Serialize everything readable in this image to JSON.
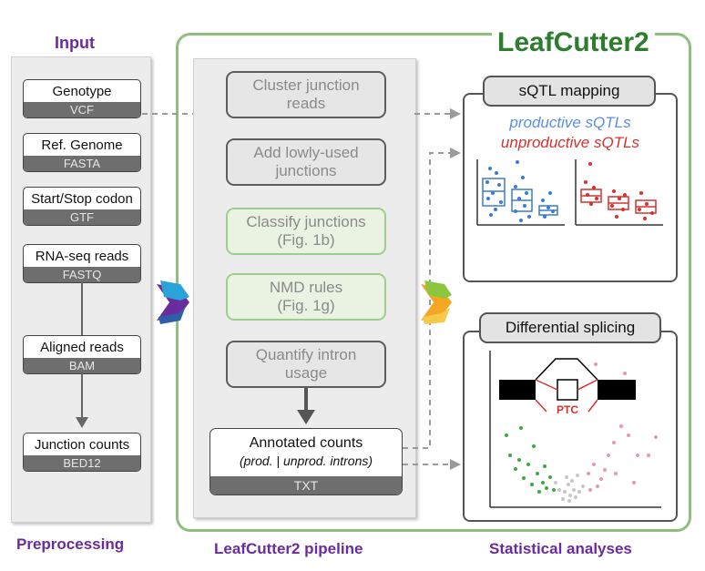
{
  "input": {
    "title": "Input",
    "items": [
      {
        "label": "Genotype",
        "format": "VCF"
      },
      {
        "label": "Ref. Genome",
        "format": "FASTA"
      },
      {
        "label": "Start/Stop codon",
        "format": "GTF"
      },
      {
        "label": "RNA-seq reads",
        "format": "FASTQ"
      },
      {
        "label": "Aligned reads",
        "format": "BAM"
      },
      {
        "label": "Junction counts",
        "format": "BED12"
      }
    ]
  },
  "pipeline": {
    "title": "LeafCutter2",
    "steps": [
      {
        "label": "Cluster junction\nreads"
      },
      {
        "label": "Add lowly-used\njunctions"
      },
      {
        "label": "Classify junctions\n(Fig. 1b)"
      },
      {
        "label": "NMD rules\n(Fig. 1g)"
      },
      {
        "label": "Quantify intron\nusage"
      }
    ],
    "output": {
      "label": "Annotated counts",
      "sublabel": "(prod. | unprod. introns)",
      "format": "TXT"
    }
  },
  "analyses": {
    "sqtl": {
      "title": "sQTL mapping",
      "productive": "productive sQTLs",
      "unproductive": "unproductive sQTLs"
    },
    "diff": {
      "title": "Differential splicing",
      "ptc_label": "PTC"
    }
  },
  "footers": {
    "preprocessing": "Preprocessing",
    "pipeline": "LeafCutter2 pipeline",
    "statistical": "Statistical analyses"
  },
  "colors": {
    "purple": "#6a2c9c",
    "green": "#2e7d2e",
    "productive": "#3a7bd5",
    "unproductive": "#d6312f"
  }
}
